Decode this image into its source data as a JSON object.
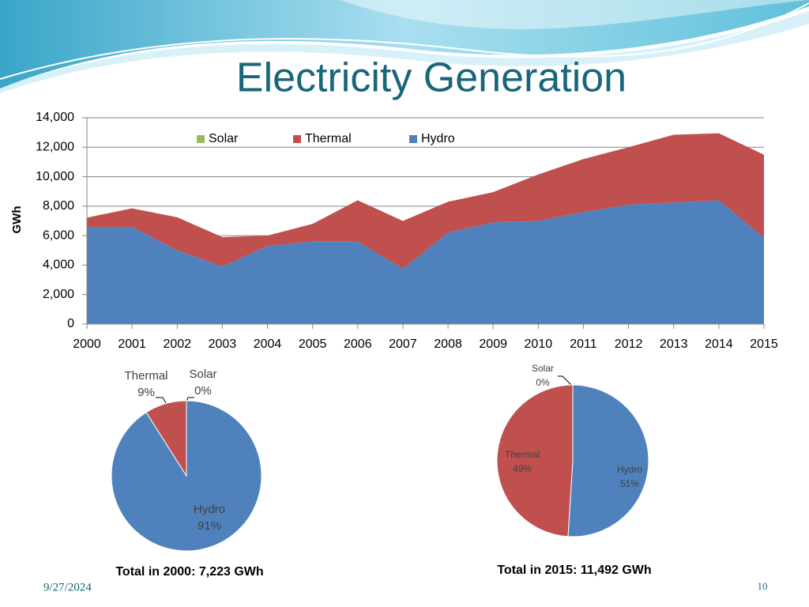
{
  "slide": {
    "title": "Electricity Generation",
    "date": "9/27/2024",
    "page": "10"
  },
  "chart_data": [
    {
      "type": "stacked-area",
      "y_label": "GWh",
      "categories": [
        "2000",
        "2001",
        "2002",
        "2003",
        "2004",
        "2005",
        "2006",
        "2007",
        "2008",
        "2009",
        "2010",
        "2011",
        "2012",
        "2013",
        "2014",
        "2015"
      ],
      "series": [
        {
          "name": "Solar",
          "color": "#9bbb59",
          "values": [
            0,
            0,
            0,
            0,
            0,
            0,
            0,
            0,
            0,
            0,
            0,
            0,
            0,
            0,
            0,
            0
          ]
        },
        {
          "name": "Thermal",
          "color": "#c0504d",
          "values": [
            623,
            1250,
            2250,
            2000,
            700,
            1200,
            2800,
            3250,
            2100,
            2050,
            3150,
            3600,
            3900,
            4600,
            4550,
            5632
          ]
        },
        {
          "name": "Hydro",
          "color": "#4f81bd",
          "values": [
            6600,
            6600,
            5000,
            3900,
            5300,
            5600,
            5600,
            3750,
            6200,
            6900,
            7000,
            7600,
            8100,
            8250,
            8400,
            5860
          ]
        }
      ],
      "ylim": [
        0,
        14000
      ],
      "yticks": [
        0,
        {
          "value": 2000,
          "label": "2,000"
        },
        {
          "value": 4000,
          "label": "4,000"
        },
        {
          "value": 6000,
          "label": "6,000"
        },
        {
          "value": 8000,
          "label": "8,000"
        },
        {
          "value": 10000,
          "label": "10,000"
        },
        {
          "value": 12000,
          "label": "12,000"
        },
        {
          "value": 14000,
          "label": "14,000"
        }
      ],
      "grid": true,
      "legend": "top"
    },
    {
      "type": "pie",
      "title": "Total in 2000: 7,223 GWh",
      "categories": [
        "Hydro",
        "Thermal",
        "Solar"
      ],
      "values": [
        91,
        9,
        0
      ],
      "value_labels": [
        "91%",
        "9%",
        "0%"
      ],
      "colors": [
        "#4f81bd",
        "#c0504d",
        "#9bbb59"
      ]
    },
    {
      "type": "pie",
      "title": "Total in 2015: 11,492 GWh",
      "categories": [
        "Hydro",
        "Thermal",
        "Solar"
      ],
      "values": [
        51,
        49,
        0
      ],
      "value_labels": [
        "51%",
        "49%",
        "0%"
      ],
      "colors": [
        "#4f81bd",
        "#c0504d",
        "#9bbb59"
      ]
    }
  ]
}
